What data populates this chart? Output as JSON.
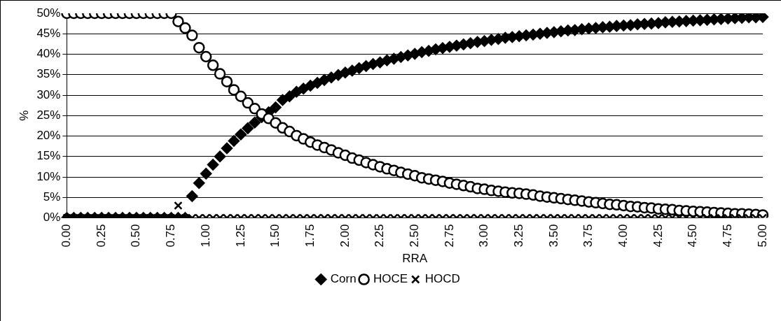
{
  "chart_data": {
    "type": "scatter",
    "xlabel": "RRA",
    "ylabel": "%",
    "categories": [
      "0.00",
      null,
      null,
      null,
      null,
      "0.25",
      null,
      null,
      null,
      null,
      "0.50",
      null,
      null,
      null,
      null,
      "0.75",
      null,
      null,
      null,
      null,
      "1.00",
      null,
      null,
      null,
      null,
      "1.25",
      null,
      null,
      null,
      null,
      "1.50",
      null,
      null,
      null,
      null,
      "1.75",
      null,
      null,
      null,
      null,
      "2.00",
      null,
      null,
      null,
      null,
      "2.25",
      null,
      null,
      null,
      null,
      "2.50",
      null,
      null,
      null,
      null,
      "2.75",
      null,
      null,
      null,
      null,
      "3.00",
      null,
      null,
      null,
      null,
      "3.25",
      null,
      null,
      null,
      null,
      "3.50",
      null,
      null,
      null,
      null,
      "3.75",
      null,
      null,
      null,
      null,
      "4.00",
      null,
      null,
      null,
      null,
      "4.25",
      null,
      null,
      null,
      null,
      "4.50",
      null,
      null,
      null,
      null,
      "4.75",
      null,
      null,
      null,
      null,
      "5.00"
    ],
    "series": [
      {
        "name": "Corn",
        "color": "#000000",
        "marker": "diamond",
        "values": [
          0,
          0,
          0,
          0,
          0,
          0,
          0,
          0,
          0,
          0,
          0,
          0,
          0,
          0,
          0,
          0,
          0,
          0,
          5.3,
          8.5,
          10.8,
          13.0,
          15.0,
          17.0,
          18.8,
          20.4,
          21.9,
          23.3,
          24.6,
          25.8,
          27.0,
          28.8,
          29.7,
          30.8,
          31.6,
          32.3,
          33.0,
          33.7,
          34.3,
          34.9,
          35.5,
          36.0,
          36.6,
          37.1,
          37.6,
          38.0,
          38.5,
          38.9,
          39.3,
          39.7,
          40.1,
          40.5,
          40.8,
          41.2,
          41.5,
          41.8,
          42.1,
          42.4,
          42.7,
          43.0,
          43.2,
          43.5,
          43.7,
          44.0,
          44.2,
          44.4,
          44.6,
          44.8,
          45.0,
          45.2,
          45.4,
          45.6,
          45.8,
          45.9,
          46.1,
          46.3,
          46.4,
          46.6,
          46.7,
          46.9,
          47.0,
          47.1,
          47.3,
          47.4,
          47.5,
          47.6,
          47.8,
          47.9,
          48.0,
          48.1,
          48.2,
          48.3,
          48.4,
          48.5,
          48.6,
          48.7,
          48.8,
          48.9,
          49.0,
          49.0,
          49.1
        ]
      },
      {
        "name": "HOCE",
        "color": "#000000",
        "marker": "circle",
        "values": [
          50,
          50,
          50,
          50,
          50,
          50,
          50,
          50,
          50,
          50,
          50,
          50,
          50,
          50,
          50,
          50,
          48.0,
          46.4,
          44.6,
          41.6,
          39.4,
          37.3,
          35.2,
          33.3,
          31.3,
          29.7,
          28.1,
          26.7,
          25.4,
          24.3,
          23.2,
          22.0,
          21.1,
          20.1,
          19.3,
          18.5,
          17.8,
          17.2,
          16.6,
          15.9,
          15.3,
          14.6,
          14.1,
          13.5,
          13.0,
          12.5,
          12.0,
          11.6,
          11.1,
          10.7,
          10.3,
          9.8,
          9.5,
          9.2,
          8.9,
          8.5,
          8.2,
          7.9,
          7.6,
          7.2,
          7.0,
          6.7,
          6.5,
          6.3,
          6.1,
          6.0,
          5.8,
          5.6,
          5.3,
          5.1,
          4.9,
          4.7,
          4.5,
          4.3,
          4.1,
          3.9,
          3.7,
          3.5,
          3.3,
          3.2,
          3.0,
          2.8,
          2.7,
          2.5,
          2.4,
          2.2,
          2.1,
          2.0,
          1.8,
          1.7,
          1.6,
          1.5,
          1.4,
          1.3,
          1.2,
          1.1,
          1.0,
          1.0,
          0.9,
          0.8,
          0.7
        ]
      },
      {
        "name": "HOCD",
        "color": "#000000",
        "marker": "cross",
        "values": [
          0,
          0,
          0,
          0,
          0,
          0,
          0,
          0,
          0,
          0,
          0,
          0,
          0,
          0,
          0,
          0,
          3,
          0,
          0,
          0,
          0,
          0,
          0,
          0,
          0,
          0,
          0,
          0,
          0,
          0,
          0,
          0,
          0,
          0,
          0,
          0,
          0,
          0,
          0,
          0,
          0,
          0,
          0,
          0,
          0,
          0,
          0,
          0,
          0,
          0,
          0,
          0,
          0,
          0,
          0,
          0,
          0,
          0,
          0,
          0,
          0,
          0,
          0,
          0,
          0,
          0,
          0,
          0,
          0,
          0,
          0,
          0,
          0,
          0,
          0,
          0,
          0,
          0,
          0,
          0,
          0,
          0,
          0,
          0,
          0,
          0,
          0,
          0,
          0,
          0,
          0,
          0,
          0,
          0,
          0,
          0,
          0,
          0,
          0,
          0,
          0
        ]
      }
    ],
    "ylim": [
      0,
      50
    ],
    "yticks": [
      {
        "value": 0,
        "label": "0%"
      },
      {
        "value": 5,
        "label": "5%"
      },
      {
        "value": 10,
        "label": "10%"
      },
      {
        "value": 15,
        "label": "15%"
      },
      {
        "value": 20,
        "label": "20%"
      },
      {
        "value": 25,
        "label": "25%"
      },
      {
        "value": 30,
        "label": "30%"
      },
      {
        "value": 35,
        "label": "35%"
      },
      {
        "value": 40,
        "label": "40%"
      },
      {
        "value": 45,
        "label": "45%"
      },
      {
        "value": 50,
        "label": "50%"
      }
    ],
    "grid": "y",
    "legend": "bottom"
  }
}
